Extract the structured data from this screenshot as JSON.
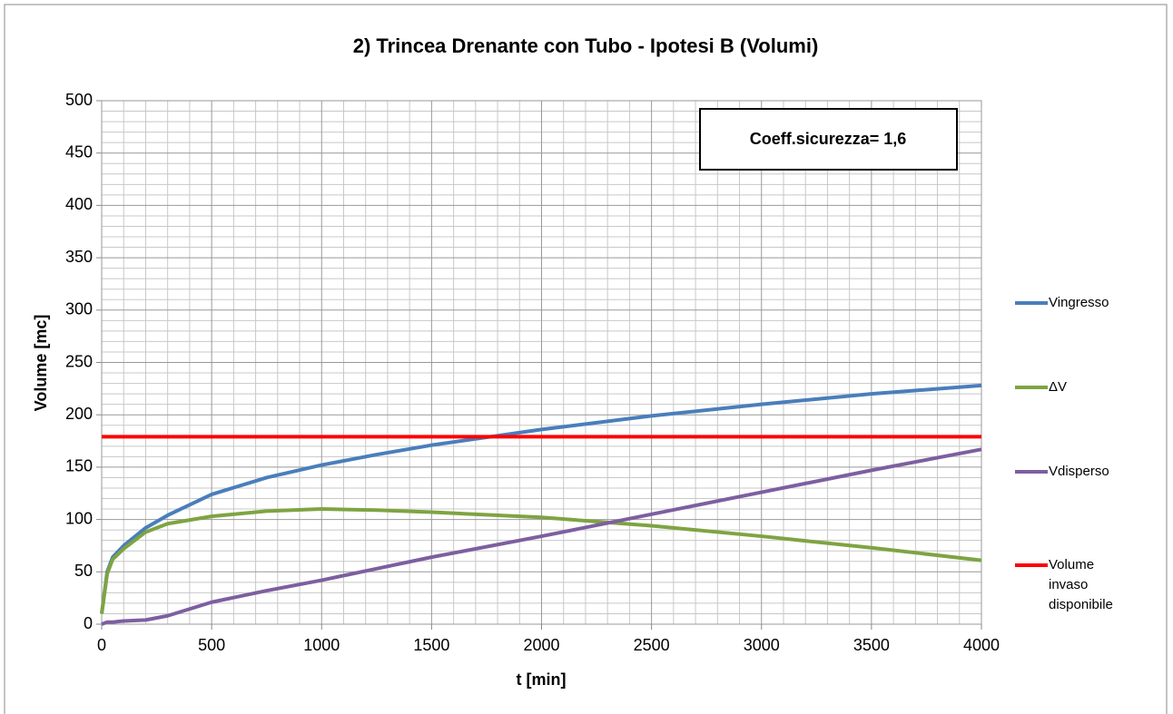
{
  "chart_data": {
    "type": "line",
    "title": "2) Trincea Drenante con Tubo - Ipotesi B (Volumi)",
    "xlabel": "t [min]",
    "ylabel": "Volume [mc]",
    "annotation": "Coeff.sicurezza= 1,6",
    "x": [
      0,
      25,
      50,
      100,
      200,
      300,
      500,
      750,
      1000,
      1250,
      1500,
      2000,
      2500,
      3000,
      3500,
      4000
    ],
    "series": [
      {
        "name": "Vingresso",
        "color": "#4a7ebb",
        "values": [
          10,
          50,
          64,
          75,
          92,
          104,
          124,
          140,
          152,
          162,
          171,
          186,
          199,
          210,
          220,
          228
        ]
      },
      {
        "name": "ΔV",
        "color": "#7ea442",
        "values": [
          10,
          48,
          62,
          72,
          88,
          96,
          103,
          108,
          110,
          109,
          107,
          102,
          94,
          84,
          73,
          61
        ]
      },
      {
        "name": "Vdisperso",
        "color": "#7d5fa0",
        "values": [
          0,
          2,
          2,
          3,
          4,
          8,
          21,
          32,
          42,
          53,
          64,
          84,
          105,
          126,
          147,
          167
        ]
      },
      {
        "name": "Volume invaso disponibile",
        "color": "#ff0000",
        "values": [
          179,
          179,
          179,
          179,
          179,
          179,
          179,
          179,
          179,
          179,
          179,
          179,
          179,
          179,
          179,
          179
        ]
      }
    ],
    "xlim": [
      0,
      4000
    ],
    "xticks": [
      0,
      500,
      1000,
      1500,
      2000,
      2500,
      3000,
      3500,
      4000
    ],
    "ylim": [
      0,
      500
    ],
    "yticks": [
      0,
      50,
      100,
      150,
      200,
      250,
      300,
      350,
      400,
      450,
      500
    ],
    "grid": true,
    "legend": "right"
  }
}
